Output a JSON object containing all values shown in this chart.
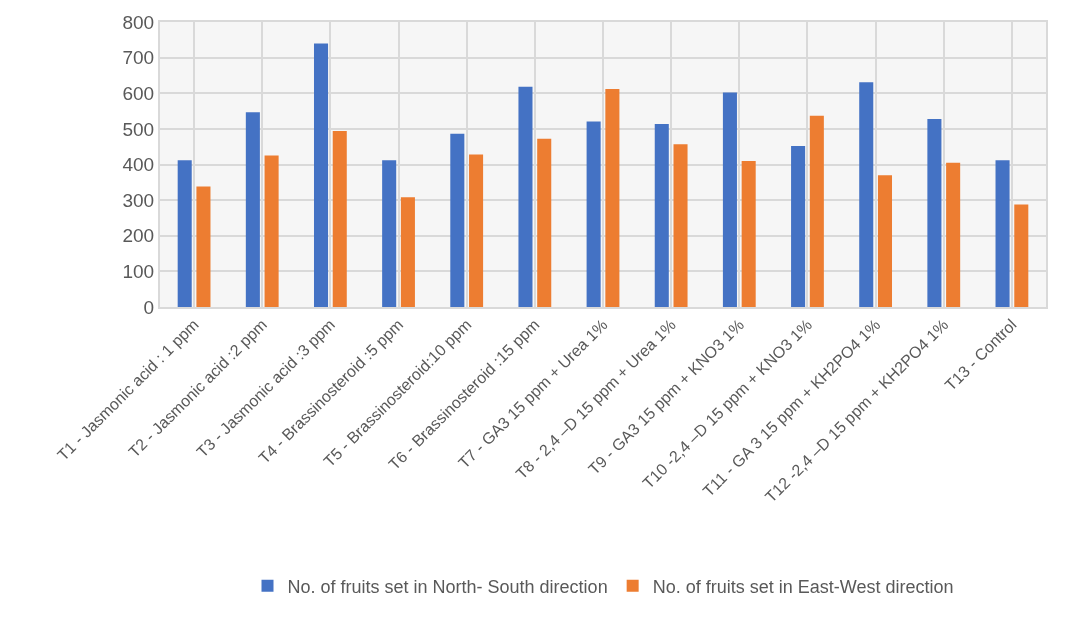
{
  "chart_data": {
    "type": "bar",
    "categories": [
      "T1 - Jasmonic acid : 1 ppm",
      "T2 - Jasmonic acid :2 ppm",
      "T3 - Jasmonic acid :3 ppm",
      "T4 - Brassinosteroid :5 ppm",
      "T5 - Brassinosteroid:10 ppm",
      "T6 - Brassinosteroid :15 ppm",
      "T7 - GA3 15 ppm + Urea 1%",
      "T8 - 2,4 –D 15 ppm + Urea 1%",
      "T9 - GA3 15 ppm + KNO3 1%",
      "T10 -2,4 –D 15 ppm + KNO3 1%",
      "T11 - GA 3 15 ppm + KH2PO4 1%",
      "T12 -2,4 –D 15 ppm + KH2PO4 1%",
      "T13 - Control"
    ],
    "series": [
      {
        "name": "No. of fruits set in North- South direction",
        "color": "#4472c4",
        "values": [
          412,
          547,
          740,
          412,
          486,
          618,
          521,
          514,
          602,
          452,
          631,
          528,
          412
        ]
      },
      {
        "name": "No. of fruits set in East-West direction",
        "color": "#ed7d31",
        "values": [
          338,
          425,
          494,
          308,
          428,
          472,
          612,
          457,
          410,
          537,
          370,
          405,
          288
        ]
      }
    ],
    "ylim": [
      0,
      800
    ],
    "yticks": [
      0,
      100,
      200,
      300,
      400,
      500,
      600,
      700,
      800
    ],
    "grid": true,
    "legend": "bottom"
  }
}
